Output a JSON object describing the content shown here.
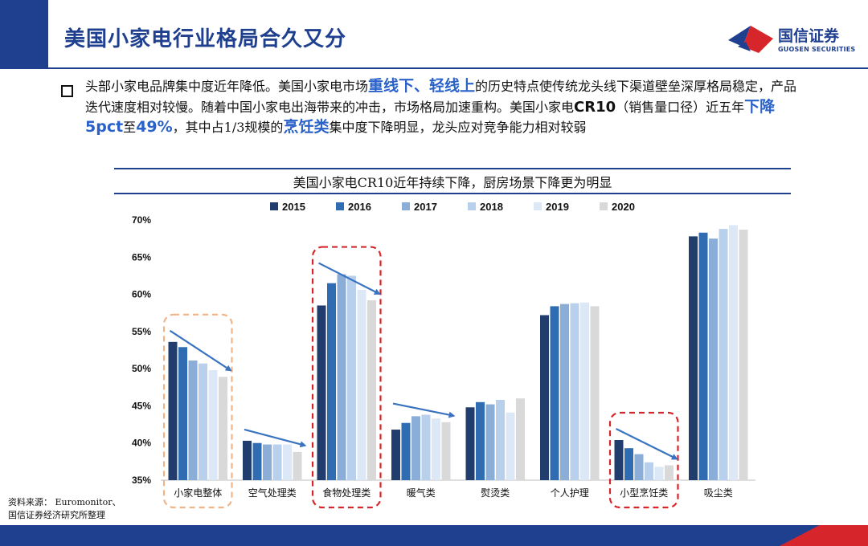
{
  "header": {
    "title": "美国小家电行业格局合久又分",
    "logo_text": "国信证券",
    "logo_sub": "GUOSEN SECURITIES"
  },
  "bullet": {
    "p1": "头部小家电品牌集中度近年降低。美国小家电市场",
    "h1": "重线下、轻线上",
    "p2": "的历史特点使传统龙头线下渠道壁垒深厚格局稳定，产品迭代速度相对较慢。随着中国小家电出海带来的冲击，市场格局加速重构。美国小家电",
    "cr": "CR10",
    "p3": "（销售量口径）近五年",
    "h2": "下降5pct",
    "p4": "至",
    "h3": "49%",
    "p5": "，其中占1/3规模的",
    "h4": "烹饪类",
    "p6": "集中度下降明显，龙头应对竞争能力相对较弱"
  },
  "chart_data": {
    "type": "bar",
    "title": "美国小家电CR10近年持续下降，厨房场景下降更为明显",
    "categories": [
      "小家电整体",
      "空气处理类",
      "食物处理类",
      "暖气类",
      "熨烫类",
      "个人护理",
      "小型烹饪类",
      "吸尘类"
    ],
    "series": [
      {
        "name": "2015",
        "values": [
          53.6,
          40.3,
          58.5,
          41.8,
          44.8,
          57.2,
          40.4,
          67.8
        ]
      },
      {
        "name": "2016",
        "values": [
          52.9,
          40.0,
          61.5,
          42.7,
          45.5,
          58.4,
          39.3,
          68.3
        ]
      },
      {
        "name": "2017",
        "values": [
          51.1,
          39.8,
          62.7,
          43.6,
          45.2,
          58.7,
          38.5,
          67.5
        ]
      },
      {
        "name": "2018",
        "values": [
          50.7,
          39.8,
          62.5,
          43.8,
          45.8,
          58.8,
          37.4,
          68.8
        ]
      },
      {
        "name": "2019",
        "values": [
          49.8,
          39.8,
          60.6,
          43.3,
          44.1,
          58.9,
          36.8,
          69.3
        ]
      },
      {
        "name": "2020",
        "values": [
          48.9,
          38.8,
          59.2,
          42.8,
          46.0,
          58.4,
          37.0,
          68.7
        ]
      }
    ],
    "colors": [
      "#213d6d",
      "#2f6cb1",
      "#8aaed8",
      "#b8d0ec",
      "#dce8f6",
      "#d9d9d9"
    ],
    "yticks": [
      "35%",
      "40%",
      "45%",
      "50%",
      "55%",
      "60%",
      "65%",
      "70%"
    ],
    "ylim": [
      35,
      70
    ],
    "highlight_boxes": [
      {
        "category": "小家电整体",
        "color": "#f0b489"
      },
      {
        "category": "食物处理类",
        "color": "#d7262b"
      },
      {
        "category": "小型烹饪类",
        "color": "#d7262b"
      }
    ],
    "trend_arrows": [
      "小家电整体",
      "空气处理类",
      "食物处理类",
      "暖气类",
      "小型烹饪类"
    ],
    "arrow_color": "#3a73c0",
    "grid": false,
    "legend_position": "top-center"
  },
  "source": {
    "line1": "资料来源： Euromonitor、",
    "line2": "国信证券经济研究所整理"
  },
  "colors": {
    "brand_blue": "#1f3f8f",
    "brand_red": "#d7262b",
    "highlight_text": "#2a62c9"
  }
}
